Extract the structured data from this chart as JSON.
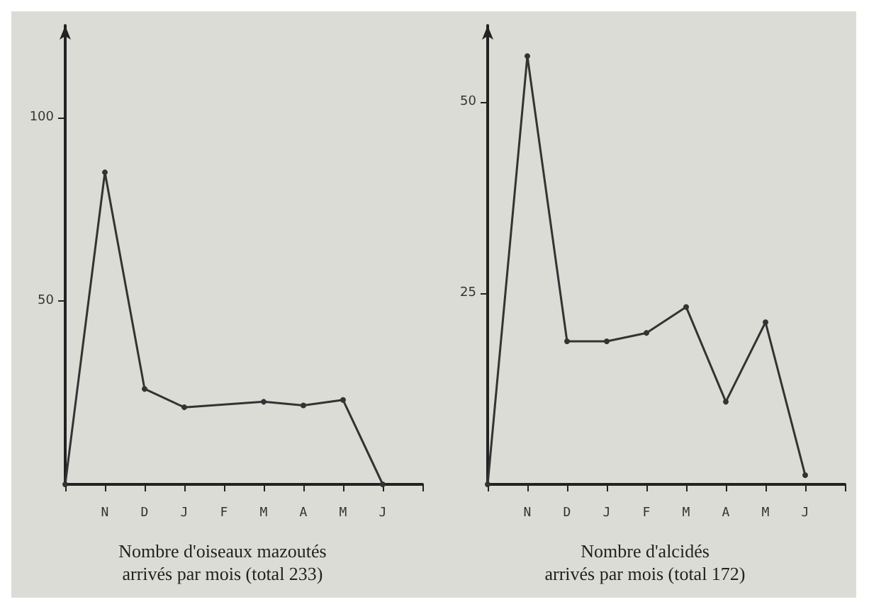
{
  "chart_data": [
    {
      "type": "line",
      "title": "Nombre d'oiseaux mazoutés\narrivés par mois (total 233)",
      "categories": [
        null,
        "N",
        "D",
        "J",
        "F",
        "M",
        "A",
        "M",
        "J",
        null
      ],
      "series": [
        {
          "color": "#333333",
          "values": [
            0,
            85,
            26,
            21,
            null,
            22.5,
            21.5,
            23,
            0,
            null
          ]
        }
      ],
      "ylim": [
        0,
        125
      ],
      "yticks": [
        50,
        100
      ],
      "grid": false,
      "marker": "circle",
      "line_style": "solid"
    },
    {
      "type": "line",
      "title": "Nombre d'alcidés\narrivés par mois (total 172)",
      "categories": [
        null,
        "N",
        "D",
        "J",
        "F",
        "M",
        "A",
        "M",
        "J",
        null
      ],
      "series": [
        {
          "color": "#333333",
          "values": [
            0,
            56,
            18.7,
            18.7,
            19.8,
            23.2,
            10.8,
            21.2,
            1.2,
            null
          ]
        }
      ],
      "ylim": [
        0,
        60
      ],
      "yticks": [
        25,
        50
      ],
      "grid": false,
      "marker": "circle",
      "line_style": "solid"
    }
  ]
}
